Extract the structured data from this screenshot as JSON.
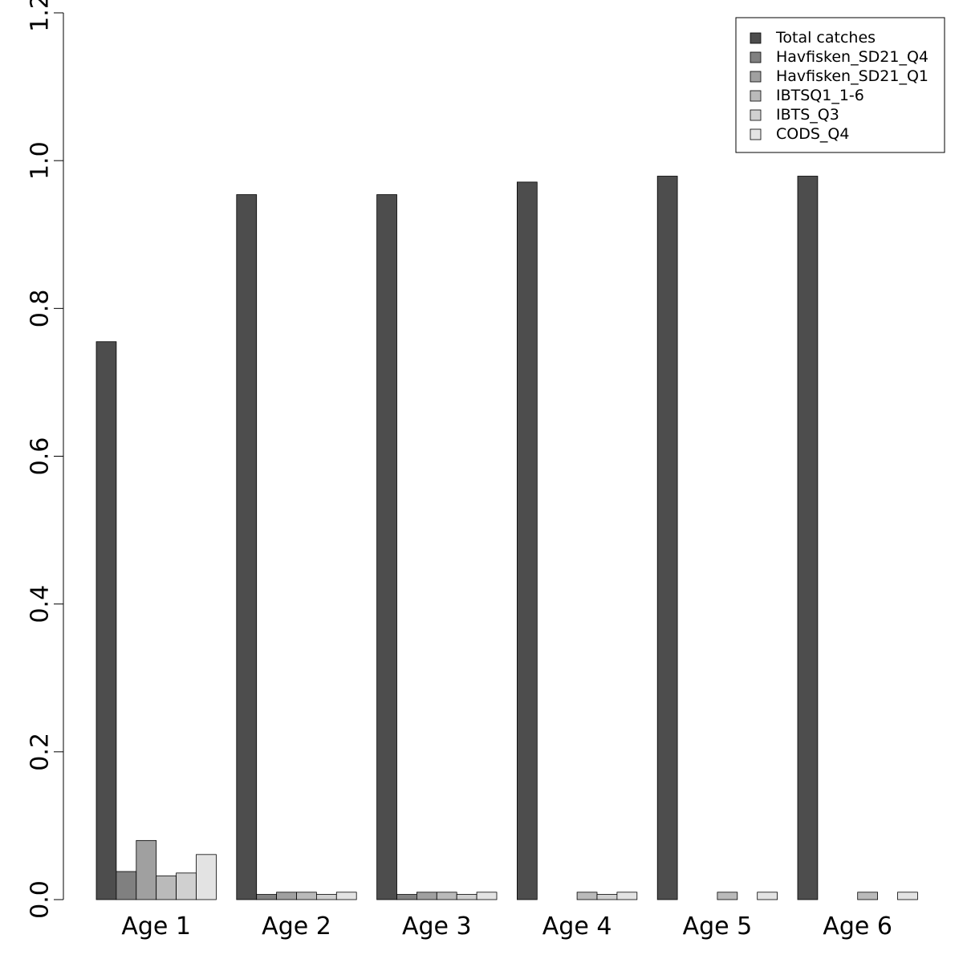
{
  "chart_data": {
    "type": "bar",
    "categories": [
      "Age 1",
      "Age 2",
      "Age 3",
      "Age 4",
      "Age 5",
      "Age 6"
    ],
    "series": [
      {
        "name": "Total catches",
        "color": "#4d4d4d",
        "values": [
          0.755,
          0.954,
          0.954,
          0.971,
          0.979,
          0.979
        ]
      },
      {
        "name": "Havfisken_SD21_Q4",
        "color": "#808080",
        "values": [
          0.038,
          0.007,
          0.007,
          0.0,
          0.0,
          0.0
        ]
      },
      {
        "name": "Havfisken_SD21_Q1",
        "color": "#a0a0a0",
        "values": [
          0.08,
          0.01,
          0.01,
          0.0,
          0.0,
          0.0
        ]
      },
      {
        "name": "IBTSQ1_1-6",
        "color": "#bababa",
        "values": [
          0.032,
          0.01,
          0.01,
          0.01,
          0.01,
          0.01
        ]
      },
      {
        "name": "IBTS_Q3",
        "color": "#d0d0d0",
        "values": [
          0.036,
          0.007,
          0.007,
          0.007,
          0.0,
          0.0
        ]
      },
      {
        "name": "CODS_Q4",
        "color": "#e3e3e3",
        "values": [
          0.061,
          0.01,
          0.01,
          0.01,
          0.01,
          0.01
        ]
      }
    ],
    "yticks": [
      "0.0",
      "0.2",
      "0.4",
      "0.6",
      "0.8",
      "1.0",
      "1.2"
    ],
    "ylim": [
      0,
      1.2
    ],
    "title": "",
    "xlabel": "",
    "ylabel": "",
    "grid": false,
    "legend_position": "top-right"
  }
}
